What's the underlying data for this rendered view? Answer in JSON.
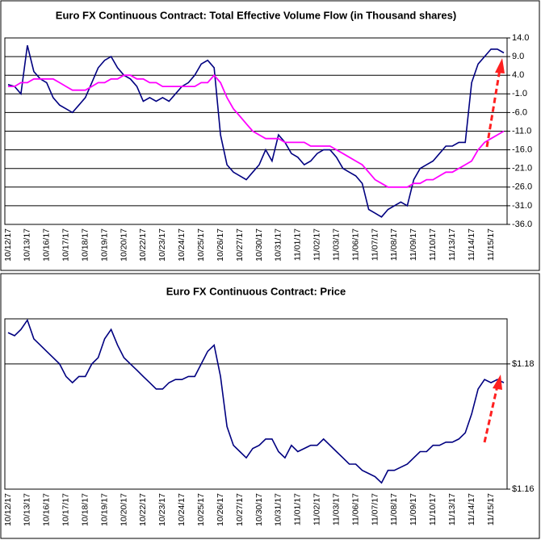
{
  "chart_data": [
    {
      "type": "line",
      "title": "Euro FX Continuous Contract: Total Effective Volume Flow (in Thousand shares)",
      "categories": [
        "10/12/17",
        null,
        null,
        "10/13/17",
        null,
        null,
        "10/16/17",
        null,
        null,
        "10/17/17",
        null,
        null,
        "10/18/17",
        null,
        null,
        "10/19/17",
        null,
        null,
        "10/20/17",
        null,
        null,
        "10/22/17",
        null,
        null,
        "10/23/17",
        null,
        null,
        "10/24/17",
        null,
        null,
        "10/25/17",
        null,
        null,
        "10/26/17",
        null,
        null,
        "10/27/17",
        null,
        null,
        "10/30/17",
        null,
        null,
        "10/31/17",
        null,
        null,
        "11/01/17",
        null,
        null,
        "11/02/17",
        null,
        null,
        "11/03/17",
        null,
        null,
        "11/06/17",
        null,
        null,
        "11/07/17",
        null,
        null,
        "11/08/17",
        null,
        null,
        "11/09/17",
        null,
        null,
        "11/10/17",
        null,
        null,
        "11/13/17",
        null,
        null,
        "11/14/17",
        null,
        null,
        "11/15/17",
        null,
        null
      ],
      "series": [
        {
          "color": "#000080",
          "values": [
            1.5,
            1,
            -1,
            12,
            5,
            3,
            2,
            -2,
            -4,
            -5,
            -6,
            -4,
            -2,
            2,
            6,
            8,
            9,
            6,
            4,
            3,
            1,
            -3,
            -2,
            -3,
            -2,
            -3,
            -1,
            1,
            2,
            4,
            7,
            8,
            6,
            -12,
            -20,
            -22,
            -23,
            -24,
            -22,
            -20,
            -16,
            -19,
            -12,
            -14,
            -17,
            -18,
            -20,
            -19,
            -17,
            -16,
            -16,
            -18,
            -21,
            -22,
            -23,
            -25,
            -32,
            -33,
            -34,
            -32,
            -31,
            -30,
            -31,
            -24,
            -21,
            -20,
            -19,
            -17,
            -15,
            -15,
            -14,
            -14,
            2,
            7,
            9,
            11,
            11,
            10
          ]
        },
        {
          "color": "#ff00ff",
          "values": [
            1,
            1,
            2,
            2,
            3,
            3,
            3,
            3,
            2,
            1,
            0,
            0,
            0,
            1,
            2,
            2,
            3,
            3,
            4,
            4,
            3,
            3,
            2,
            2,
            1,
            1,
            1,
            1,
            1,
            1,
            2,
            2,
            4,
            2,
            -2,
            -5,
            -7,
            -9,
            -11,
            -12,
            -13,
            -13,
            -13,
            -14,
            -14,
            -14,
            -14,
            -15,
            -15,
            -15,
            -15,
            -16,
            -17,
            -18,
            -19,
            -20,
            -22,
            -24,
            -25,
            -26,
            -26,
            -26,
            -26,
            -25,
            -25,
            -24,
            -24,
            -23,
            -22,
            -22,
            -21,
            -20,
            -19,
            -16,
            -14,
            -13,
            -12,
            -11
          ]
        }
      ],
      "ylim": [
        -36,
        14
      ],
      "yticks": [
        {
          "value": 14,
          "label": "14.0"
        },
        {
          "value": 9,
          "label": "9.0"
        },
        {
          "value": 4,
          "label": "4.0"
        },
        {
          "value": -1,
          "label": "-1.0"
        },
        {
          "value": -6,
          "label": "-6.0"
        },
        {
          "value": -11,
          "label": "-11.0"
        },
        {
          "value": -16,
          "label": "-16.0"
        },
        {
          "value": -21,
          "label": "-21.0"
        },
        {
          "value": -26,
          "label": "-26.0"
        },
        {
          "value": -31,
          "label": "-31.0"
        },
        {
          "value": -36,
          "label": "-36.0"
        }
      ],
      "grid": true
    },
    {
      "type": "line",
      "title": "Euro FX Continuous Contract: Price",
      "categories": [
        "10/12/17",
        null,
        null,
        "10/13/17",
        null,
        null,
        "10/16/17",
        null,
        null,
        "10/17/17",
        null,
        null,
        "10/18/17",
        null,
        null,
        "10/19/17",
        null,
        null,
        "10/20/17",
        null,
        null,
        "10/22/17",
        null,
        null,
        "10/23/17",
        null,
        null,
        "10/24/17",
        null,
        null,
        "10/25/17",
        null,
        null,
        "10/26/17",
        null,
        null,
        "10/27/17",
        null,
        null,
        "10/30/17",
        null,
        null,
        "10/31/17",
        null,
        null,
        "11/01/17",
        null,
        null,
        "11/02/17",
        null,
        null,
        "11/03/17",
        null,
        null,
        "11/06/17",
        null,
        null,
        "11/07/17",
        null,
        null,
        "11/08/17",
        null,
        null,
        "11/09/17",
        null,
        null,
        "11/10/17",
        null,
        null,
        "11/13/17",
        null,
        null,
        "11/14/17",
        null,
        null,
        "11/15/17",
        null,
        null
      ],
      "series": [
        {
          "color": "#000080",
          "values": [
            1.185,
            1.1845,
            1.1855,
            1.187,
            1.184,
            1.183,
            1.182,
            1.181,
            1.18,
            1.178,
            1.177,
            1.178,
            1.178,
            1.18,
            1.181,
            1.184,
            1.1855,
            1.183,
            1.181,
            1.18,
            1.179,
            1.178,
            1.177,
            1.176,
            1.176,
            1.177,
            1.1775,
            1.1775,
            1.178,
            1.178,
            1.18,
            1.182,
            1.183,
            1.178,
            1.17,
            1.167,
            1.166,
            1.165,
            1.1665,
            1.167,
            1.168,
            1.168,
            1.166,
            1.165,
            1.167,
            1.166,
            1.1665,
            1.167,
            1.167,
            1.168,
            1.167,
            1.166,
            1.165,
            1.164,
            1.164,
            1.163,
            1.1625,
            1.162,
            1.161,
            1.163,
            1.163,
            1.1635,
            1.164,
            1.165,
            1.166,
            1.166,
            1.167,
            1.167,
            1.1675,
            1.1675,
            1.168,
            1.169,
            1.172,
            1.176,
            1.1775,
            1.177,
            1.1775,
            1.177
          ]
        }
      ],
      "ylim": [
        1.16,
        1.1872
      ],
      "yticks": [
        {
          "value": 1.18,
          "label": "$1.18"
        },
        {
          "value": 1.16,
          "label": "$1.16"
        }
      ],
      "grid": true
    }
  ]
}
